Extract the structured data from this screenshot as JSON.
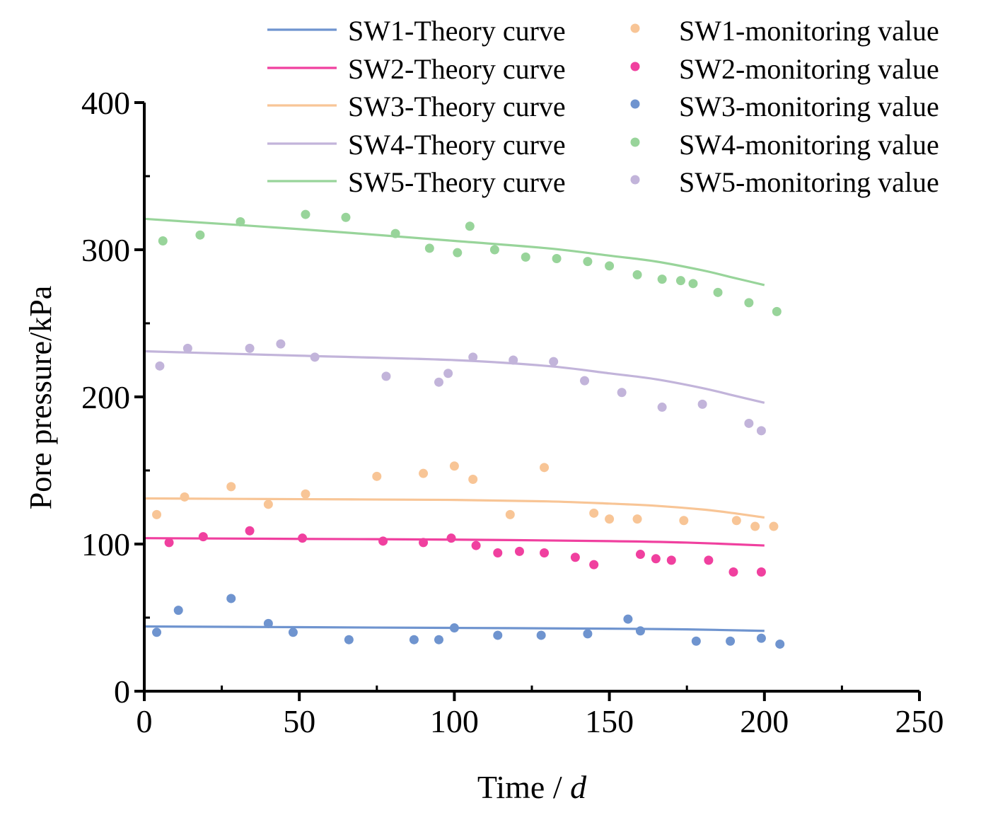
{
  "chart_data": {
    "type": "scatter",
    "title": "",
    "xlabel": "Time / ",
    "xlabel_italic": "d",
    "ylabel": "Pore pressure/kPa",
    "xlim": [
      0,
      250
    ],
    "ylim": [
      0,
      400
    ],
    "xticks": [
      0,
      50,
      100,
      150,
      200,
      250
    ],
    "yticks": [
      0,
      100,
      200,
      300,
      400
    ],
    "xtick_labels": [
      "0",
      "50",
      "100",
      "150",
      "200",
      "250"
    ],
    "ytick_labels": [
      "0",
      "100",
      "200",
      "300",
      "400"
    ],
    "grid": false,
    "legend_position": "top-right",
    "series": [
      {
        "name": "SW1-Theory curve",
        "kind": "line",
        "color": "#6f94cf",
        "x": [
          0,
          50,
          100,
          150,
          175,
          200
        ],
        "y": [
          44,
          43.5,
          43,
          42.5,
          42,
          41
        ]
      },
      {
        "name": "SW2-Theory curve",
        "kind": "line",
        "color": "#f0409f",
        "x": [
          0,
          50,
          100,
          150,
          175,
          200
        ],
        "y": [
          104,
          103.5,
          103,
          102,
          101,
          99
        ]
      },
      {
        "name": "SW3-Theory curve",
        "kind": "line",
        "color": "#f8c596",
        "x": [
          0,
          50,
          100,
          130,
          150,
          165,
          180,
          190,
          200
        ],
        "y": [
          131,
          130.5,
          130,
          129,
          127.5,
          126,
          123.5,
          121,
          118
        ]
      },
      {
        "name": "SW4-Theory curve",
        "kind": "line",
        "color": "#c2b4da",
        "x": [
          0,
          50,
          100,
          130,
          150,
          165,
          180,
          190,
          200
        ],
        "y": [
          231,
          228,
          225,
          221,
          216,
          212,
          206,
          201,
          196
        ]
      },
      {
        "name": "SW5-Theory curve",
        "kind": "line",
        "color": "#98d49a",
        "x": [
          0,
          50,
          100,
          130,
          150,
          165,
          180,
          190,
          200
        ],
        "y": [
          321,
          314,
          306,
          301,
          296,
          292,
          286,
          281,
          276
        ]
      },
      {
        "name": "SW1-monitoring value",
        "kind": "points",
        "color": "#f8c596",
        "x": [
          4,
          13,
          28,
          40,
          52,
          75,
          90,
          100,
          106,
          118,
          129,
          145,
          150,
          159,
          174,
          191,
          197,
          203
        ],
        "y": [
          120,
          132,
          139,
          127,
          134,
          146,
          148,
          153,
          144,
          120,
          152,
          121,
          117,
          117,
          116,
          116,
          112,
          112
        ]
      },
      {
        "name": "SW2-monitoring value",
        "kind": "points",
        "color": "#f0409f",
        "x": [
          8,
          19,
          34,
          51,
          77,
          90,
          99,
          107,
          114,
          121,
          129,
          139,
          145,
          160,
          165,
          170,
          182,
          190,
          199
        ],
        "y": [
          101,
          105,
          109,
          104,
          102,
          101,
          104,
          99,
          94,
          95,
          94,
          91,
          86,
          93,
          90,
          89,
          89,
          81,
          81
        ]
      },
      {
        "name": "SW3-monitoring value",
        "kind": "points",
        "color": "#6f94cf",
        "x": [
          4,
          11,
          28,
          40,
          48,
          66,
          87,
          95,
          100,
          114,
          128,
          143,
          156,
          160,
          178,
          189,
          199,
          205
        ],
        "y": [
          40,
          55,
          63,
          46,
          40,
          35,
          35,
          35,
          43,
          38,
          38,
          39,
          49,
          41,
          34,
          34,
          36,
          32
        ]
      },
      {
        "name": "SW4-monitoring value",
        "kind": "points",
        "color": "#98d49a",
        "x": [
          6,
          18,
          31,
          52,
          65,
          81,
          92,
          101,
          105,
          113,
          123,
          133,
          143,
          150,
          159,
          167,
          173,
          177,
          185,
          195,
          204
        ],
        "y": [
          306,
          310,
          319,
          324,
          322,
          311,
          301,
          298,
          316,
          300,
          295,
          294,
          292,
          289,
          283,
          280,
          279,
          277,
          271,
          264,
          258
        ]
      },
      {
        "name": "SW5-monitoring value",
        "kind": "points",
        "color": "#c2b4da",
        "x": [
          5,
          14,
          34,
          44,
          55,
          78,
          95,
          98,
          106,
          119,
          132,
          142,
          154,
          167,
          180,
          195,
          199
        ],
        "y": [
          221,
          233,
          233,
          236,
          227,
          214,
          210,
          216,
          227,
          225,
          224,
          211,
          203,
          193,
          195,
          182,
          177
        ]
      }
    ]
  }
}
